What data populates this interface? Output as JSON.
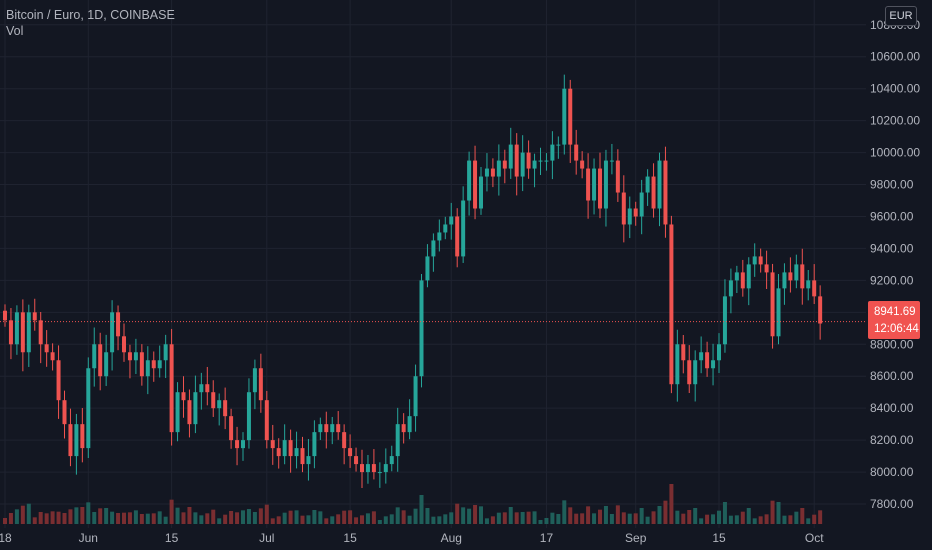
{
  "legend": {
    "symbol_line": "Bitcoin / Euro, 1D, COINBASE",
    "volume_label": "Vol"
  },
  "currency_button": "EUR",
  "price_tag": {
    "price": "8941.69",
    "countdown": "12:06:44",
    "color": "#f05350"
  },
  "colors": {
    "background": "#131722",
    "grid": "#1f2330",
    "up": "#26a69a",
    "down": "#ef5350",
    "volume_up": "#1f5f5a",
    "volume_down": "#7a2e31",
    "axis_text": "#b2b5be"
  },
  "chart_data": {
    "type": "candlestick",
    "y_ticks": [
      "7800.00",
      "8000.00",
      "8200.00",
      "8400.00",
      "8600.00",
      "8800.00",
      "9000.00",
      "9200.00",
      "9400.00",
      "9600.00",
      "9800.00",
      "10000.00",
      "10200.00",
      "10400.00",
      "10600.00",
      "10800.00"
    ],
    "ylim": [
      7700,
      10830
    ],
    "x_ticks": [
      {
        "label": "18",
        "index": 0
      },
      {
        "label": "Jun",
        "index": 14
      },
      {
        "label": "15",
        "index": 28
      },
      {
        "label": "Jul",
        "index": 44
      },
      {
        "label": "15",
        "index": 58
      },
      {
        "label": "Aug",
        "index": 75
      },
      {
        "label": "17",
        "index": 91
      },
      {
        "label": "Sep",
        "index": 106
      },
      {
        "label": "15",
        "index": 120
      },
      {
        "label": "Oct",
        "index": 136
      }
    ],
    "grid": true,
    "current_price": 8941.69,
    "close": [
      8950,
      8800,
      9000,
      8750,
      9000,
      8950,
      8800,
      8750,
      8700,
      8450,
      8300,
      8100,
      8300,
      8150,
      8650,
      8800,
      8600,
      8750,
      9000,
      8850,
      8750,
      8700,
      8750,
      8600,
      8700,
      8650,
      8700,
      8800,
      8250,
      8500,
      8450,
      8300,
      8500,
      8550,
      8500,
      8400,
      8450,
      8350,
      8200,
      8150,
      8200,
      8500,
      8650,
      8450,
      8200,
      8150,
      8100,
      8200,
      8100,
      8150,
      8050,
      8100,
      8250,
      8300,
      8250,
      8300,
      8250,
      8150,
      8100,
      8050,
      8000,
      8050,
      8000,
      8000,
      8050,
      8100,
      8300,
      8250,
      8350,
      8600,
      9200,
      9350,
      9450,
      9500,
      9550,
      9600,
      9350,
      9700,
      9950,
      9650,
      9850,
      9900,
      9850,
      9950,
      9900,
      10050,
      9850,
      10000,
      9900,
      9950,
      9950,
      9950,
      10050,
      10050,
      10400,
      10050,
      9950,
      9900,
      9700,
      9900,
      9650,
      9950,
      9950,
      9750,
      9550,
      9650,
      9600,
      9750,
      9850,
      9650,
      9950,
      9550,
      8550,
      8800,
      8700,
      8550,
      8700,
      8750,
      8650,
      8700,
      8800,
      9100,
      9200,
      9250,
      9150,
      9300,
      9350,
      9300,
      9250,
      8850,
      9150,
      9250,
      9200,
      9300,
      9150,
      9200,
      9100,
      8930
    ]
  }
}
